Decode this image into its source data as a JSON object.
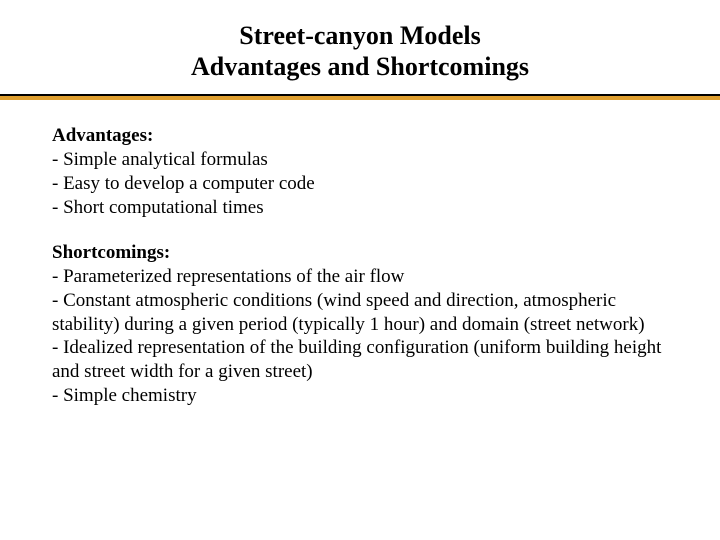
{
  "title": {
    "line1": "Street-canyon Models",
    "line2": "Advantages and Shortcomings"
  },
  "sections": [
    {
      "heading": "Advantages:",
      "items": [
        "- Simple analytical formulas",
        "- Easy to develop a computer code",
        "- Short computational times"
      ]
    },
    {
      "heading": "Shortcomings:",
      "items": [
        "- Parameterized representations of the air flow",
        "- Constant atmospheric conditions (wind speed and direction, atmospheric stability) during a given period (typically 1 hour) and domain (street network)",
        "- Idealized representation of the building configuration (uniform building height and street width for a given street)",
        "- Simple chemistry"
      ]
    }
  ],
  "colors": {
    "background": "#ffffff",
    "text": "#000000",
    "divider_top": "#000000",
    "divider_bottom": "#e0a030"
  },
  "typography": {
    "title_fontsize": 26,
    "body_fontsize": 19,
    "font_family": "Times New Roman"
  }
}
